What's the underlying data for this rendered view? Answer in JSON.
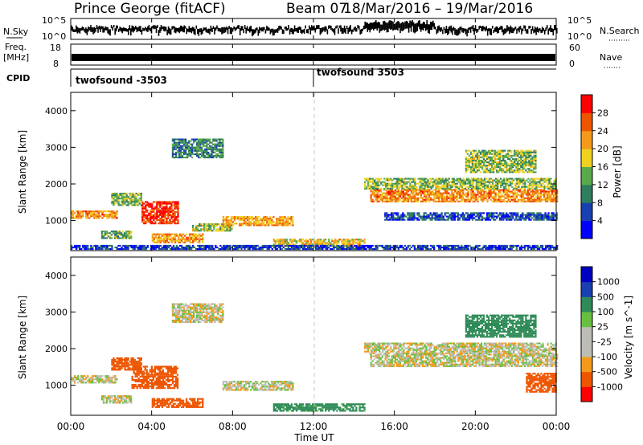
{
  "header": {
    "station": "Prince George (fitACF)",
    "beam": "Beam 07",
    "date_range": "18/Mar/2016 – 19/Mar/2016"
  },
  "noise_panel": {
    "left_label": "N.Sky",
    "right_label": "N.Search",
    "left_ticks": [
      "10^5",
      "10^0"
    ],
    "right_ticks": [
      "10^5",
      "10^0"
    ]
  },
  "freq_panel": {
    "left_label_line1": "Freq.",
    "left_label_line2": "[MHz]",
    "right_label": "Nave",
    "left_ticks": [
      "18",
      "8"
    ],
    "right_ticks": [
      "60",
      "0"
    ]
  },
  "cpid": {
    "label": "CPID",
    "segments": [
      {
        "text": "twofsound -3503",
        "start_hour": 0
      },
      {
        "text": "twofsound 3503",
        "start_hour": 12
      }
    ]
  },
  "x_axis": {
    "label": "Time UT",
    "ticks": [
      "00:00",
      "04:00",
      "08:00",
      "12:00",
      "16:00",
      "20:00",
      "00:00"
    ]
  },
  "colors": {
    "power_scale": [
      "#0000ff",
      "#1a3fb0",
      "#2e7d5e",
      "#5aa84c",
      "#f0d020",
      "#f39a1a",
      "#ee5500",
      "#ff0000"
    ],
    "velocity_scale": [
      "#ff0000",
      "#ee5500",
      "#f39a1a",
      "#bdbdb6",
      "#bdbdb6",
      "#67c040",
      "#2e8b57",
      "#1a3fb0",
      "#0000c0"
    ],
    "ground_scatter": "#bdbdb6"
  },
  "chart_data": [
    {
      "type": "heatmap",
      "title": "Power",
      "ylabel": "Slant Range [km]",
      "xlabel": "Time UT",
      "xlim": [
        0,
        24
      ],
      "ylim": [
        180,
        4500
      ],
      "yticks": [
        "1000",
        "2000",
        "3000",
        "4000"
      ],
      "colorbar_label": "Power [dB]",
      "colorbar_ticks": [
        "4",
        "8",
        "12",
        "16",
        "20",
        "24",
        "28"
      ],
      "colorbar_range": [
        0,
        30
      ],
      "grid": false,
      "legend": "colorbar-right",
      "features": [
        {
          "x": [
            0.0,
            2.3
          ],
          "y": [
            1050,
            1250
          ],
          "value": 22
        },
        {
          "x": [
            2.0,
            3.5
          ],
          "y": [
            1400,
            1750
          ],
          "value": 14
        },
        {
          "x": [
            1.5,
            3.0
          ],
          "y": [
            500,
            700
          ],
          "value": 12
        },
        {
          "x": [
            3.5,
            5.3
          ],
          "y": [
            900,
            1500
          ],
          "value": 27
        },
        {
          "x": [
            4.0,
            6.5
          ],
          "y": [
            380,
            620
          ],
          "value": 20
        },
        {
          "x": [
            5.0,
            7.5
          ],
          "y": [
            2700,
            3200
          ],
          "value": 10
        },
        {
          "x": [
            6.0,
            8.0
          ],
          "y": [
            700,
            900
          ],
          "value": 15
        },
        {
          "x": [
            7.5,
            11.0
          ],
          "y": [
            850,
            1100
          ],
          "value": 20
        },
        {
          "x": [
            10.0,
            14.5
          ],
          "y": [
            280,
            500
          ],
          "value": 18
        },
        {
          "x": [
            14.8,
            24.0
          ],
          "y": [
            1500,
            1850
          ],
          "value": 22
        },
        {
          "x": [
            14.5,
            24.0
          ],
          "y": [
            1850,
            2150
          ],
          "value": 14
        },
        {
          "x": [
            15.5,
            24.0
          ],
          "y": [
            1000,
            1200
          ],
          "value": 6
        },
        {
          "x": [
            19.5,
            23.0
          ],
          "y": [
            2300,
            2900
          ],
          "value": 14
        },
        {
          "x": [
            0.0,
            24.0
          ],
          "y": [
            200,
            320
          ],
          "value": 5
        }
      ]
    },
    {
      "type": "heatmap",
      "title": "Velocity",
      "ylabel": "Slant Range [km]",
      "xlabel": "Time UT",
      "xlim": [
        0,
        24
      ],
      "ylim": [
        180,
        4500
      ],
      "yticks": [
        "1000",
        "2000",
        "3000",
        "4000"
      ],
      "colorbar_label": "Velocity [m s^-1]",
      "colorbar_ticks": [
        "-1000",
        "-500",
        "-100",
        "-25",
        "25",
        "100",
        "500",
        "1000"
      ],
      "colorbar_range": [
        -1000,
        1000
      ],
      "grid": false,
      "legend": "colorbar-right",
      "features": [
        {
          "x": [
            0.0,
            2.3
          ],
          "y": [
            1050,
            1250
          ],
          "value": 0
        },
        {
          "x": [
            2.0,
            3.5
          ],
          "y": [
            1400,
            1750
          ],
          "value": -200
        },
        {
          "x": [
            1.5,
            3.0
          ],
          "y": [
            500,
            700
          ],
          "value": 0
        },
        {
          "x": [
            3.0,
            5.3
          ],
          "y": [
            900,
            1500
          ],
          "value": -300
        },
        {
          "x": [
            4.0,
            6.5
          ],
          "y": [
            380,
            620
          ],
          "value": -400
        },
        {
          "x": [
            5.0,
            7.5
          ],
          "y": [
            2700,
            3200
          ],
          "value": 0
        },
        {
          "x": [
            7.5,
            11.0
          ],
          "y": [
            850,
            1100
          ],
          "value": 0
        },
        {
          "x": [
            10.0,
            14.5
          ],
          "y": [
            280,
            500
          ],
          "value": 150
        },
        {
          "x": [
            14.8,
            24.0
          ],
          "y": [
            1500,
            1850
          ],
          "value": 0
        },
        {
          "x": [
            14.5,
            24.0
          ],
          "y": [
            1850,
            2150
          ],
          "value": 0
        },
        {
          "x": [
            19.5,
            23.0
          ],
          "y": [
            2300,
            2900
          ],
          "value": 200
        },
        {
          "x": [
            22.5,
            24.0
          ],
          "y": [
            800,
            1300
          ],
          "value": -400
        }
      ]
    }
  ]
}
